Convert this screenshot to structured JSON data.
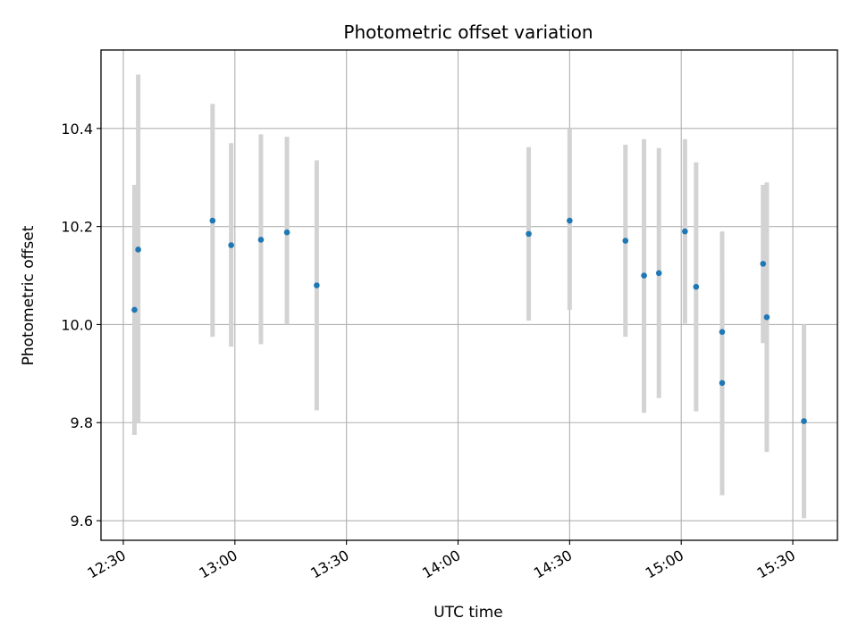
{
  "chart_data": {
    "type": "scatter",
    "title": "Photometric offset variation",
    "xlabel": "UTC time",
    "ylabel": "Photometric offset",
    "xlim": [
      "12:24",
      "15:42"
    ],
    "ylim": [
      9.56,
      10.56
    ],
    "xticks": [
      "12:30",
      "13:00",
      "13:30",
      "14:00",
      "14:30",
      "15:00",
      "15:30"
    ],
    "yticks": [
      9.6,
      9.8,
      10.0,
      10.2,
      10.4
    ],
    "ytick_labels": [
      "9.6",
      "9.8",
      "10.0",
      "10.2",
      "10.4"
    ],
    "grid": true,
    "marker_color": "#1f77b4",
    "errorbar_color": "#d3d3d3",
    "points": [
      {
        "x": "12:33",
        "y": 10.03,
        "lo": 9.775,
        "hi": 10.285
      },
      {
        "x": "12:34",
        "y": 10.153,
        "lo": 9.8,
        "hi": 10.51
      },
      {
        "x": "12:54",
        "y": 10.212,
        "lo": 9.975,
        "hi": 10.45
      },
      {
        "x": "12:59",
        "y": 10.162,
        "lo": 9.955,
        "hi": 10.37
      },
      {
        "x": "13:07",
        "y": 10.173,
        "lo": 9.96,
        "hi": 10.388
      },
      {
        "x": "13:14",
        "y": 10.188,
        "lo": 10.0,
        "hi": 10.383
      },
      {
        "x": "13:22",
        "y": 10.08,
        "lo": 9.825,
        "hi": 10.335
      },
      {
        "x": "14:19",
        "y": 10.185,
        "lo": 10.008,
        "hi": 10.362
      },
      {
        "x": "14:30",
        "y": 10.212,
        "lo": 10.03,
        "hi": 10.4
      },
      {
        "x": "14:45",
        "y": 10.171,
        "lo": 9.975,
        "hi": 10.367
      },
      {
        "x": "14:50",
        "y": 10.1,
        "lo": 9.82,
        "hi": 10.378
      },
      {
        "x": "14:54",
        "y": 10.105,
        "lo": 9.85,
        "hi": 10.36
      },
      {
        "x": "15:01",
        "y": 10.19,
        "lo": 10.002,
        "hi": 10.378
      },
      {
        "x": "15:04",
        "y": 10.077,
        "lo": 9.823,
        "hi": 10.331
      },
      {
        "x": "15:11",
        "y": 9.985,
        "lo": 9.778,
        "hi": 10.19
      },
      {
        "x": "15:11",
        "y": 9.881,
        "lo": 9.652,
        "hi": 10.108
      },
      {
        "x": "15:22",
        "y": 10.124,
        "lo": 9.962,
        "hi": 10.285
      },
      {
        "x": "15:23",
        "y": 10.015,
        "lo": 9.74,
        "hi": 10.29
      },
      {
        "x": "15:33",
        "y": 9.803,
        "lo": 9.605,
        "hi": 10.0
      }
    ]
  }
}
